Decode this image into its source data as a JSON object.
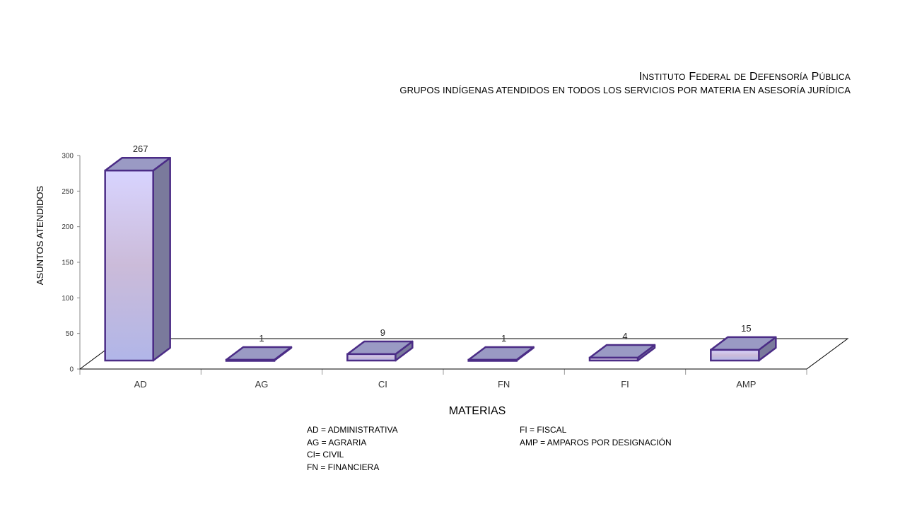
{
  "chart_data": {
    "type": "bar",
    "title_words": [
      {
        "first": "I",
        "rest": "NSTITUTO"
      },
      {
        "first": "F",
        "rest": "EDERAL"
      },
      {
        "first": "",
        "rest": "DE"
      },
      {
        "first": "D",
        "rest": "EFENSORÍA"
      },
      {
        "first": "P",
        "rest": "ÚBLICA"
      }
    ],
    "subtitle": "GRUPOS INDÍGENAS ATENDIDOS EN TODOS LOS SERVICIOS POR MATERIA EN ASESORÍA JURÍDICA",
    "xlabel": "MATERIAS",
    "ylabel": "ASUNTOS ATENDIDOS",
    "ylim": [
      0,
      300
    ],
    "yticks": [
      0,
      50,
      100,
      150,
      200,
      250,
      300
    ],
    "categories": [
      "AD",
      "AG",
      "CI",
      "FN",
      "FI",
      "AMP"
    ],
    "values": [
      267,
      1,
      9,
      1,
      4,
      15
    ],
    "data_labels": [
      "267",
      "1",
      "9",
      "1",
      "4",
      "15"
    ],
    "grid": false,
    "style": "3d-column",
    "colors": {
      "bar_front_top": "#d8d4ff",
      "bar_front_mid": "#cbbbd9",
      "bar_front_bottom": "#b1b6e8",
      "bar_side": "#7a7a9c",
      "bar_top": "#9a9ac4",
      "bar_outline": "#4b2c86",
      "axis": "#000000"
    }
  },
  "legend": {
    "left": [
      "AD = ADMINISTRATIVA",
      "AG = AGRARIA",
      "CI= CIVIL",
      "FN = FINANCIERA"
    ],
    "right": [
      "FI = FISCAL",
      "AMP = AMPAROS POR DESIGNACIÓN"
    ]
  }
}
